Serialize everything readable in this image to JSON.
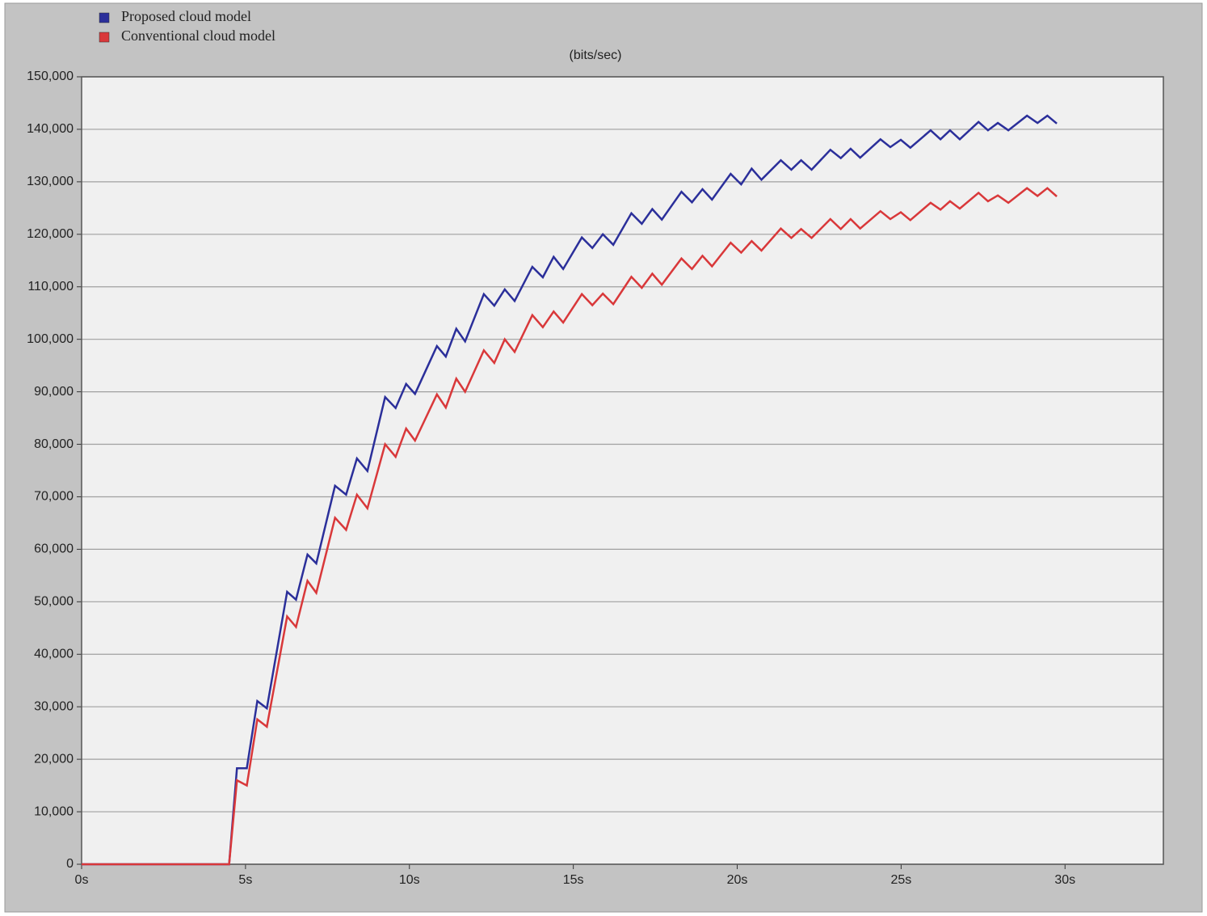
{
  "chart_data": {
    "type": "line",
    "y_label": "(bits/sec)",
    "x": [
      0,
      4.5,
      4.74,
      5.04,
      5.36,
      5.65,
      6.27,
      6.54,
      6.89,
      7.16,
      7.73,
      8.07,
      8.4,
      8.72,
      9.26,
      9.58,
      9.9,
      10.17,
      10.84,
      11.11,
      11.43,
      11.7,
      12.27,
      12.59,
      12.91,
      13.21,
      13.75,
      14.07,
      14.4,
      14.69,
      15.26,
      15.58,
      15.9,
      16.22,
      16.77,
      17.09,
      17.41,
      17.7,
      18.3,
      18.62,
      18.94,
      19.23,
      19.8,
      20.12,
      20.44,
      20.74,
      21.33,
      21.65,
      21.95,
      22.27,
      22.84,
      23.16,
      23.46,
      23.75,
      24.37,
      24.67,
      24.99,
      25.28,
      25.9,
      26.2,
      26.49,
      26.79,
      27.36,
      27.65,
      27.95,
      28.27,
      28.84,
      29.16,
      29.46,
      29.75
    ],
    "series": [
      {
        "name": "Proposed cloud model",
        "color": "#2b2f9a",
        "values": [
          0,
          0,
          18300,
          18300,
          31100,
          29700,
          51900,
          50400,
          59000,
          57300,
          72100,
          70400,
          77300,
          74900,
          89000,
          86900,
          91500,
          89600,
          98700,
          96700,
          102000,
          99600,
          108600,
          106400,
          109500,
          107300,
          113800,
          111800,
          115700,
          113400,
          119400,
          117400,
          120000,
          118000,
          124000,
          122000,
          124800,
          122800,
          128100,
          126100,
          128600,
          126600,
          131500,
          129500,
          132500,
          130400,
          134100,
          132300,
          134100,
          132300,
          136100,
          134500,
          136300,
          134600,
          138100,
          136600,
          138000,
          136500,
          139800,
          138100,
          139800,
          138100,
          141400,
          139800,
          141200,
          139800,
          142600,
          141200,
          142600,
          141100
        ]
      },
      {
        "name": "Conventional cloud model",
        "color": "#d9383a",
        "values": [
          0,
          0,
          16000,
          15000,
          27600,
          26200,
          47200,
          45200,
          54000,
          51700,
          66000,
          63700,
          70400,
          67800,
          80000,
          77600,
          83000,
          80700,
          89500,
          87000,
          92500,
          90000,
          97900,
          95500,
          100000,
          97600,
          104600,
          102300,
          105300,
          103200,
          108600,
          106500,
          108700,
          106700,
          111900,
          109800,
          112500,
          110400,
          115400,
          113400,
          115900,
          113900,
          118400,
          116500,
          118700,
          116900,
          121100,
          119300,
          121000,
          119300,
          122900,
          121000,
          122900,
          121100,
          124400,
          122900,
          124200,
          122700,
          126000,
          124700,
          126300,
          124900,
          127900,
          126300,
          127400,
          126000,
          128800,
          127300,
          128800,
          127200
        ]
      }
    ],
    "xlim": [
      0,
      33
    ],
    "xticks": [
      {
        "value": 0,
        "label": "0s"
      },
      {
        "value": 5,
        "label": "5s"
      },
      {
        "value": 10,
        "label": "10s"
      },
      {
        "value": 15,
        "label": "15s"
      },
      {
        "value": 20,
        "label": "20s"
      },
      {
        "value": 25,
        "label": "25s"
      },
      {
        "value": 30,
        "label": "30s"
      }
    ],
    "ylim": [
      0,
      150000
    ],
    "yticks": [
      0,
      {
        "value": 10000,
        "label": "10,000"
      },
      {
        "value": 20000,
        "label": "20,000"
      },
      {
        "value": 30000,
        "label": "30,000"
      },
      {
        "value": 40000,
        "label": "40,000"
      },
      {
        "value": 50000,
        "label": "50,000"
      },
      {
        "value": 60000,
        "label": "60,000"
      },
      {
        "value": 70000,
        "label": "70,000"
      },
      {
        "value": 80000,
        "label": "80,000"
      },
      {
        "value": 90000,
        "label": "90,000"
      },
      {
        "value": 100000,
        "label": "100,000"
      },
      {
        "value": 110000,
        "label": "110,000"
      },
      {
        "value": 120000,
        "label": "120,000"
      },
      {
        "value": 130000,
        "label": "130,000"
      },
      {
        "value": 140000,
        "label": "140,000"
      },
      {
        "value": 150000,
        "label": "150,000"
      }
    ],
    "grid": true,
    "legend": "top-left"
  }
}
